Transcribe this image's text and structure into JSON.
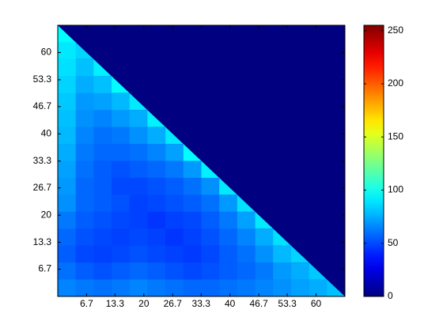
{
  "chart_data": {
    "type": "heatmap",
    "xlim": [
      0,
      66.7
    ],
    "ylim": [
      0,
      66.7
    ],
    "xticks": [
      6.7,
      13.3,
      20,
      26.7,
      33.3,
      40,
      46.7,
      53.3,
      60
    ],
    "yticks": [
      6.7,
      13.3,
      20,
      26.7,
      33.3,
      40,
      46.7,
      53.3,
      60
    ],
    "clim": [
      0,
      255
    ],
    "cticks": [
      0,
      50,
      100,
      150,
      200,
      250
    ],
    "colormap": "jet",
    "z": [
      [
        95,
        0,
        0,
        0,
        0,
        0,
        0,
        0,
        0,
        0,
        0,
        0,
        0,
        0,
        0,
        0
      ],
      [
        90,
        85,
        0,
        0,
        0,
        0,
        0,
        0,
        0,
        0,
        0,
        0,
        0,
        0,
        0,
        0
      ],
      [
        88,
        80,
        92,
        0,
        0,
        0,
        0,
        0,
        0,
        0,
        0,
        0,
        0,
        0,
        0,
        0
      ],
      [
        85,
        75,
        80,
        95,
        0,
        0,
        0,
        0,
        0,
        0,
        0,
        0,
        0,
        0,
        0,
        0
      ],
      [
        82,
        70,
        72,
        78,
        90,
        0,
        0,
        0,
        0,
        0,
        0,
        0,
        0,
        0,
        0,
        0
      ],
      [
        80,
        68,
        65,
        70,
        75,
        92,
        0,
        0,
        0,
        0,
        0,
        0,
        0,
        0,
        0,
        0
      ],
      [
        78,
        65,
        60,
        62,
        68,
        75,
        90,
        0,
        0,
        0,
        0,
        0,
        0,
        0,
        0,
        0
      ],
      [
        75,
        62,
        58,
        58,
        60,
        65,
        72,
        95,
        0,
        0,
        0,
        0,
        0,
        0,
        0,
        0
      ],
      [
        72,
        60,
        55,
        52,
        55,
        58,
        62,
        70,
        92,
        0,
        0,
        0,
        0,
        0,
        0,
        0
      ],
      [
        70,
        58,
        55,
        50,
        50,
        52,
        55,
        60,
        68,
        90,
        0,
        0,
        0,
        0,
        0,
        0
      ],
      [
        68,
        58,
        55,
        52,
        48,
        50,
        52,
        55,
        60,
        70,
        88,
        0,
        0,
        0,
        0,
        0
      ],
      [
        62,
        55,
        52,
        50,
        48,
        45,
        48,
        50,
        55,
        62,
        72,
        90,
        0,
        0,
        0,
        0
      ],
      [
        58,
        52,
        50,
        48,
        50,
        48,
        45,
        48,
        52,
        58,
        65,
        75,
        88,
        0,
        0,
        0
      ],
      [
        55,
        50,
        48,
        50,
        52,
        50,
        48,
        46,
        50,
        55,
        60,
        68,
        78,
        85,
        0,
        0
      ],
      [
        60,
        55,
        52,
        55,
        58,
        55,
        52,
        50,
        52,
        55,
        58,
        62,
        70,
        75,
        82,
        0
      ],
      [
        65,
        62,
        60,
        62,
        65,
        62,
        60,
        58,
        58,
        60,
        62,
        65,
        68,
        72,
        75,
        80
      ]
    ]
  }
}
